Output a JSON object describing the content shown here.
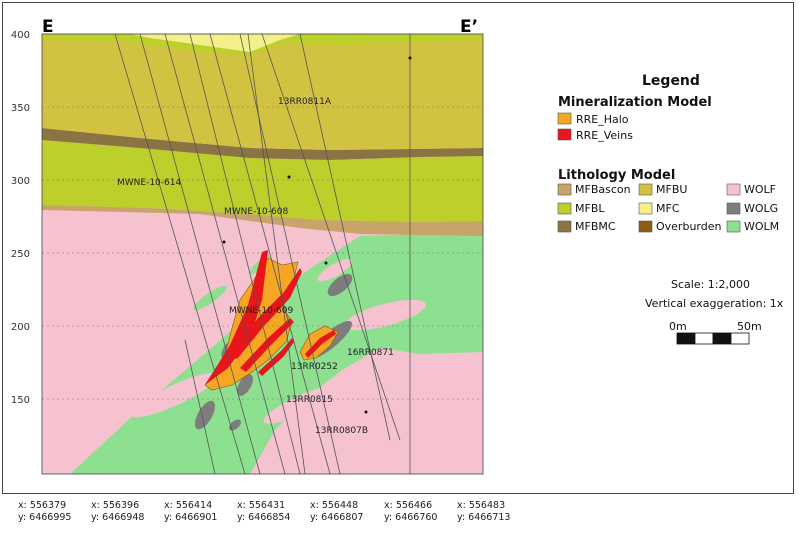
{
  "section": {
    "left_label": "E",
    "right_label": "E’"
  },
  "elevation_axis": {
    "ticks": [
      "400",
      "350",
      "300",
      "250",
      "200",
      "150"
    ]
  },
  "drillholes": [
    {
      "id": "13RR0811A"
    },
    {
      "id": "MWNE-10-614"
    },
    {
      "id": "MWNE-10-608"
    },
    {
      "id": "MWNE-10-609"
    },
    {
      "id": "16RR0871"
    },
    {
      "id": "13RR0252"
    },
    {
      "id": "13RR0815"
    },
    {
      "id": "13RR0807B"
    }
  ],
  "legend": {
    "title": "Legend",
    "mineralization": {
      "heading": "Mineralization Model",
      "items": [
        {
          "label": "RRE_Halo",
          "color": "#f5a623"
        },
        {
          "label": "RRE_Veins",
          "color": "#e8151b"
        }
      ]
    },
    "lithology": {
      "heading": "Lithology Model",
      "items": [
        {
          "label": "MFBascon",
          "color": "#c8a46a"
        },
        {
          "label": "MFBU",
          "color": "#d2c241"
        },
        {
          "label": "WOLF",
          "color": "#f6c2cf"
        },
        {
          "label": "MFBL",
          "color": "#bccf2a"
        },
        {
          "label": "MFC",
          "color": "#f3ef8b"
        },
        {
          "label": "WOLG",
          "color": "#7d7d7d"
        },
        {
          "label": "MFBMC",
          "color": "#8a7443"
        },
        {
          "label": "Overburden",
          "color": "#8b5e14"
        },
        {
          "label": "WOLM",
          "color": "#8de08f"
        }
      ]
    }
  },
  "scale": {
    "scale_text": "Scale: 1:2,000",
    "exaggeration_text": "Vertical exaggeration: 1x",
    "start_label": "0m",
    "end_label": "50m"
  },
  "coordinates": [
    {
      "x": "x: 556379",
      "y": "y: 6466995"
    },
    {
      "x": "x: 556396",
      "y": "y: 6466948"
    },
    {
      "x": "x: 556414",
      "y": "y: 6466901"
    },
    {
      "x": "x: 556431",
      "y": "y: 6466854"
    },
    {
      "x": "x: 556448",
      "y": "y: 6466807"
    },
    {
      "x": "x: 556466",
      "y": "y: 6466760"
    },
    {
      "x": "x: 556483",
      "y": "y: 6466713"
    }
  ]
}
